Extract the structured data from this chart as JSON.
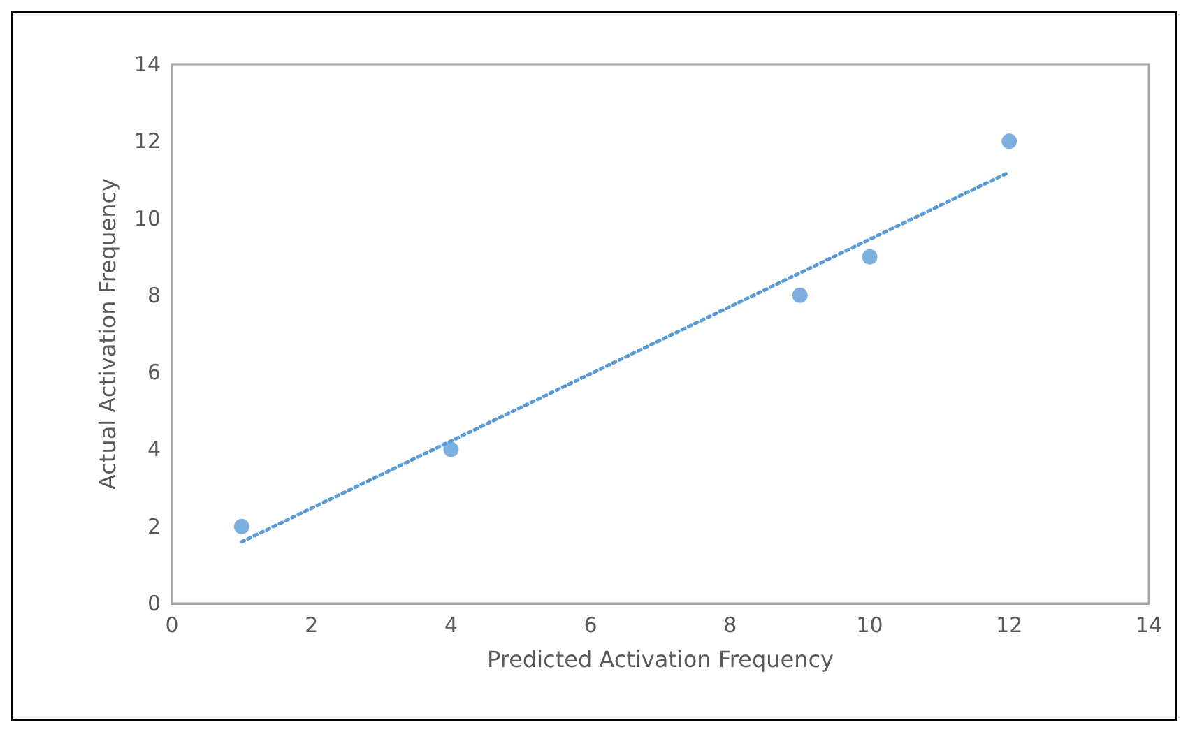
{
  "chart_data": {
    "type": "scatter",
    "xlabel": "Predicted Activation Frequency",
    "ylabel": "Actual Activation Frequency",
    "xlim": [
      0,
      14
    ],
    "xticks": [
      0,
      2,
      4,
      6,
      8,
      10,
      12,
      14
    ],
    "ylim": [
      0,
      14
    ],
    "yticks": [
      0,
      2,
      4,
      6,
      8,
      10,
      12,
      14
    ],
    "grid": false,
    "marker": "circle",
    "series": [
      {
        "color": "#5b9bd5",
        "x": [
          1,
          4,
          9,
          10,
          12
        ],
        "values": [
          2,
          4,
          8,
          9,
          12
        ]
      },
      {
        "type": "line",
        "color": "#5b9bd5",
        "line_style": "dotted",
        "marker": "none",
        "x": [
          1,
          12
        ],
        "values": [
          1.6,
          11.2
        ]
      }
    ]
  }
}
